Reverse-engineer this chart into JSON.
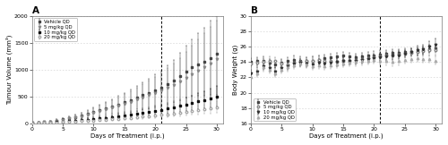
{
  "panel_A": {
    "title": "A",
    "xlabel": "Days of Treatment (i.p.)",
    "ylabel": "Tumour Volume (mm³)",
    "xlim": [
      0,
      31
    ],
    "ylim": [
      0,
      2000
    ],
    "yticks": [
      0,
      500,
      1000,
      1500,
      2000
    ],
    "xticks": [
      0,
      5,
      10,
      15,
      20,
      25,
      30
    ],
    "dashed_line_x": 21,
    "legend_loc": "upper left",
    "legend_labels": [
      "Vehicle QD",
      "5 mg/kg QD",
      "10 mg/kg QD",
      "20 mg/kg QD"
    ],
    "series": {
      "vehicle": {
        "x": [
          0,
          1,
          2,
          3,
          4,
          5,
          6,
          7,
          8,
          9,
          10,
          11,
          12,
          13,
          14,
          15,
          16,
          17,
          18,
          19,
          20,
          21,
          22,
          23,
          24,
          25,
          26,
          27,
          28,
          29,
          30
        ],
        "y": [
          10,
          18,
          28,
          40,
          55,
          75,
          95,
          120,
          148,
          178,
          210,
          245,
          280,
          315,
          355,
          395,
          440,
          480,
          525,
          570,
          620,
          670,
          730,
          800,
          880,
          960,
          1040,
          1100,
          1150,
          1220,
          1290
        ],
        "yerr": [
          5,
          8,
          12,
          16,
          22,
          30,
          38,
          48,
          58,
          72,
          88,
          105,
          122,
          140,
          158,
          178,
          200,
          220,
          242,
          265,
          290,
          318,
          348,
          385,
          430,
          480,
          530,
          580,
          630,
          690,
          750
        ],
        "marker": "s",
        "color": "#444444",
        "fillstyle": "full"
      },
      "mg5": {
        "x": [
          0,
          1,
          2,
          3,
          4,
          5,
          6,
          7,
          8,
          9,
          10,
          11,
          12,
          13,
          14,
          15,
          16,
          17,
          18,
          19,
          20,
          21,
          22,
          23,
          24,
          25,
          26,
          27,
          28,
          29,
          30
        ],
        "y": [
          10,
          18,
          28,
          40,
          55,
          72,
          92,
          115,
          140,
          168,
          198,
          230,
          262,
          295,
          330,
          368,
          405,
          445,
          485,
          528,
          572,
          618,
          668,
          722,
          780,
          845,
          915,
          985,
          1055,
          1120,
          1190
        ],
        "yerr": [
          5,
          8,
          12,
          16,
          22,
          30,
          38,
          48,
          58,
          72,
          88,
          105,
          122,
          140,
          158,
          178,
          200,
          220,
          242,
          268,
          295,
          325,
          355,
          390,
          432,
          478,
          525,
          572,
          620,
          672,
          725
        ],
        "marker": "v",
        "color": "#888888",
        "fillstyle": "none"
      },
      "mg10": {
        "x": [
          0,
          1,
          2,
          3,
          4,
          5,
          6,
          7,
          8,
          9,
          10,
          11,
          12,
          13,
          14,
          15,
          16,
          17,
          18,
          19,
          20,
          21,
          22,
          23,
          24,
          25,
          26,
          27,
          28,
          29,
          30
        ],
        "y": [
          8,
          12,
          17,
          22,
          28,
          35,
          43,
          52,
          62,
          72,
          83,
          95,
          108,
          121,
          135,
          150,
          165,
          181,
          198,
          216,
          235,
          255,
          277,
          300,
          325,
          352,
          380,
          410,
          440,
          472,
          505
        ],
        "yerr": [
          3,
          4,
          5,
          6,
          8,
          10,
          12,
          14,
          17,
          20,
          23,
          27,
          31,
          35,
          40,
          45,
          50,
          56,
          62,
          68,
          75,
          83,
          91,
          100,
          110,
          122,
          135,
          148,
          163,
          178,
          195
        ],
        "marker": "s",
        "color": "#111111",
        "fillstyle": "full"
      },
      "mg20": {
        "x": [
          0,
          1,
          2,
          3,
          4,
          5,
          6,
          7,
          8,
          9,
          10,
          11,
          12,
          13,
          14,
          15,
          16,
          17,
          18,
          19,
          20,
          21,
          22,
          23,
          24,
          25,
          26,
          27,
          28,
          29,
          30
        ],
        "y": [
          6,
          9,
          12,
          16,
          20,
          25,
          30,
          36,
          42,
          49,
          56,
          63,
          71,
          79,
          87,
          96,
          105,
          115,
          125,
          136,
          147,
          159,
          172,
          186,
          200,
          215,
          231,
          248,
          266,
          285,
          305
        ],
        "yerr": [
          2,
          3,
          4,
          5,
          6,
          7,
          8,
          9,
          11,
          12,
          14,
          16,
          18,
          20,
          22,
          25,
          28,
          31,
          34,
          37,
          41,
          45,
          49,
          54,
          60,
          66,
          72,
          79,
          87,
          96,
          106
        ],
        "marker": "o",
        "color": "#aaaaaa",
        "fillstyle": "none"
      }
    }
  },
  "panel_B": {
    "title": "B",
    "xlabel": "Days of Treatment (i.p.)",
    "ylabel": "Body Weight (g)",
    "xlim": [
      0,
      31
    ],
    "ylim": [
      16,
      30
    ],
    "yticks": [
      16,
      18,
      20,
      22,
      24,
      26,
      28,
      30
    ],
    "xticks": [
      0,
      5,
      10,
      15,
      20,
      25,
      30
    ],
    "dashed_line_x": 21,
    "legend_loc": "lower left",
    "legend_labels": [
      "Vehicle QD",
      "5 mg/kg QD",
      "10 mg/kg QD",
      "20 mg/kg QD"
    ],
    "series": {
      "vehicle": {
        "x": [
          0,
          1,
          2,
          3,
          4,
          5,
          6,
          7,
          8,
          9,
          10,
          11,
          12,
          13,
          14,
          15,
          16,
          17,
          18,
          19,
          20,
          21,
          22,
          23,
          24,
          25,
          26,
          27,
          28,
          29,
          30
        ],
        "y": [
          24.0,
          24.1,
          24.2,
          23.9,
          23.7,
          23.9,
          24.1,
          24.3,
          24.2,
          24.1,
          24.2,
          24.3,
          24.5,
          24.6,
          24.7,
          24.8,
          24.7,
          24.6,
          24.7,
          24.8,
          24.9,
          25.0,
          25.1,
          25.2,
          25.2,
          25.3,
          25.3,
          25.4,
          25.5,
          25.7,
          25.8
        ],
        "yerr": [
          0.5,
          0.5,
          0.5,
          0.5,
          0.5,
          0.5,
          0.5,
          0.5,
          0.5,
          0.5,
          0.5,
          0.5,
          0.5,
          0.5,
          0.5,
          0.5,
          0.5,
          0.5,
          0.5,
          0.5,
          0.5,
          0.5,
          0.5,
          0.5,
          0.5,
          0.5,
          0.5,
          0.5,
          0.5,
          0.5,
          0.5
        ],
        "marker": "s",
        "color": "#444444",
        "fillstyle": "full"
      },
      "mg5": {
        "x": [
          0,
          1,
          2,
          3,
          4,
          5,
          6,
          7,
          8,
          9,
          10,
          11,
          12,
          13,
          14,
          15,
          16,
          17,
          18,
          19,
          20,
          21,
          22,
          23,
          24,
          25,
          26,
          27,
          28,
          29,
          30
        ],
        "y": [
          23.8,
          23.9,
          24.0,
          24.2,
          24.1,
          23.8,
          23.7,
          23.9,
          24.0,
          24.1,
          24.2,
          24.3,
          24.2,
          24.1,
          24.0,
          24.1,
          24.2,
          24.3,
          24.4,
          24.5,
          24.6,
          24.7,
          24.8,
          24.9,
          25.0,
          25.1,
          25.2,
          25.3,
          25.4,
          25.5,
          25.6
        ],
        "yerr": [
          0.5,
          0.5,
          0.5,
          0.5,
          0.5,
          0.5,
          0.5,
          0.5,
          0.5,
          0.5,
          0.5,
          0.5,
          0.5,
          0.5,
          0.5,
          0.5,
          0.5,
          0.5,
          0.5,
          0.5,
          0.5,
          0.5,
          0.5,
          0.5,
          0.5,
          0.5,
          0.5,
          0.5,
          0.6,
          0.6,
          0.7
        ],
        "marker": "o",
        "color": "#888888",
        "fillstyle": "none"
      },
      "mg10": {
        "x": [
          0,
          1,
          2,
          3,
          4,
          5,
          6,
          7,
          8,
          9,
          10,
          11,
          12,
          13,
          14,
          15,
          16,
          17,
          18,
          19,
          20,
          21,
          22,
          23,
          24,
          25,
          26,
          27,
          28,
          29,
          30
        ],
        "y": [
          22.5,
          22.8,
          23.5,
          23.2,
          22.8,
          23.2,
          23.5,
          23.8,
          23.9,
          23.8,
          23.7,
          23.9,
          23.8,
          23.9,
          24.0,
          24.1,
          24.2,
          24.2,
          24.3,
          24.4,
          24.5,
          24.6,
          24.7,
          24.8,
          24.9,
          25.1,
          25.3,
          25.5,
          25.7,
          26.0,
          26.3
        ],
        "yerr": [
          0.5,
          0.5,
          0.5,
          0.5,
          0.5,
          0.5,
          0.5,
          0.5,
          0.5,
          0.5,
          0.5,
          0.5,
          0.5,
          0.5,
          0.5,
          0.5,
          0.5,
          0.5,
          0.5,
          0.5,
          0.5,
          0.5,
          0.5,
          0.5,
          0.5,
          0.5,
          0.5,
          0.6,
          0.6,
          0.7,
          0.8
        ],
        "marker": "v",
        "color": "#333333",
        "fillstyle": "full"
      },
      "mg20": {
        "x": [
          0,
          1,
          2,
          3,
          4,
          5,
          6,
          7,
          8,
          9,
          10,
          11,
          12,
          13,
          14,
          15,
          16,
          17,
          18,
          19,
          20,
          21,
          22,
          23,
          24,
          25,
          26,
          27,
          28,
          29,
          30
        ],
        "y": [
          22.0,
          22.5,
          23.3,
          23.0,
          22.5,
          23.0,
          23.3,
          23.6,
          23.8,
          23.7,
          23.5,
          23.6,
          23.5,
          23.6,
          23.7,
          23.8,
          23.9,
          24.0,
          24.1,
          24.2,
          24.3,
          24.2,
          24.1,
          24.0,
          24.1,
          24.3,
          24.4,
          24.5,
          24.4,
          24.4,
          24.2
        ],
        "yerr": [
          0.5,
          0.5,
          0.5,
          0.5,
          0.5,
          0.5,
          0.5,
          0.5,
          0.5,
          0.5,
          0.5,
          0.5,
          0.5,
          0.5,
          0.5,
          0.5,
          0.5,
          0.5,
          0.5,
          0.5,
          0.5,
          0.5,
          0.5,
          0.5,
          0.5,
          0.5,
          0.5,
          0.5,
          0.5,
          0.5,
          0.5
        ],
        "marker": "^",
        "color": "#aaaaaa",
        "fillstyle": "none"
      }
    }
  },
  "background_color": "#ffffff",
  "grid_color": "#cccccc",
  "font_size": 5.0
}
